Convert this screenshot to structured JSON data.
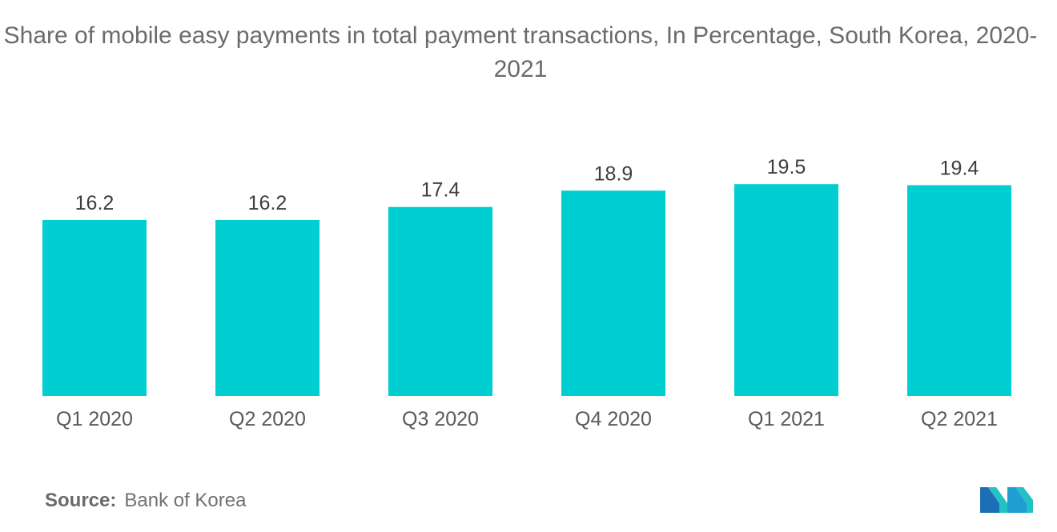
{
  "chart_data": {
    "type": "bar",
    "title": "Share of mobile easy payments in total payment transactions, In Percentage, South Korea, 2020-2021",
    "categories": [
      "Q1 2020",
      "Q2 2020",
      "Q3 2020",
      "Q4 2020",
      "Q1 2021",
      "Q2 2021"
    ],
    "values": [
      16.2,
      16.2,
      17.4,
      18.9,
      19.5,
      19.4
    ],
    "value_labels": [
      "16.2",
      "16.2",
      "17.4",
      "18.9",
      "19.5",
      "19.4"
    ],
    "xlabel": "",
    "ylabel": "",
    "ylim": [
      0,
      22
    ],
    "grid": false,
    "legend": "none",
    "bar_color": "#00CED1"
  },
  "source": {
    "label": "Source:",
    "text": "Bank of Korea"
  },
  "brand": {
    "logo_icon": "mordor-intelligence-logo-icon",
    "colors": [
      "#1e9ed3",
      "#22c1c3",
      "#1c6fb5"
    ]
  }
}
